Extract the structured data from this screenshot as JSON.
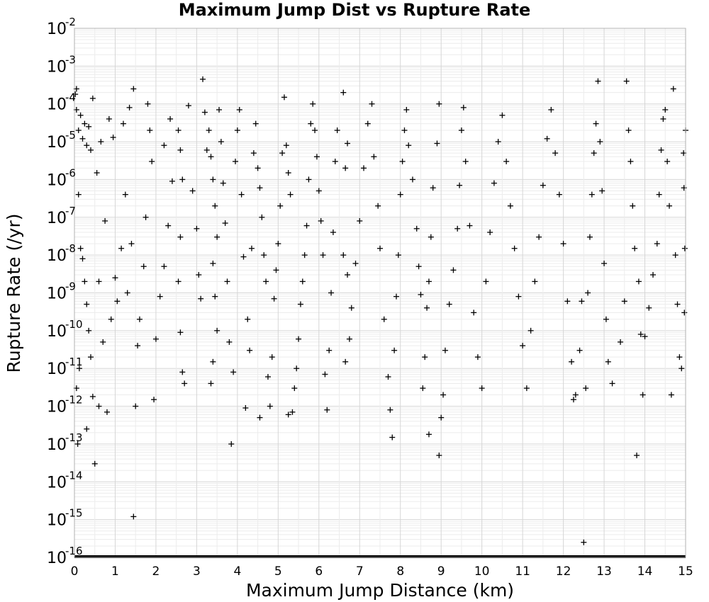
{
  "chart_data": {
    "type": "scatter",
    "title": "Maximum Jump Dist vs Rupture Rate",
    "xlabel": "Maximum Jump Distance (km)",
    "ylabel": "Rupture Rate (/yr)",
    "xlim": [
      0,
      15
    ],
    "ylim": [
      1e-16,
      0.01
    ],
    "yscale": "log",
    "x_ticks": [
      "0",
      "1",
      "2",
      "3",
      "4",
      "5",
      "6",
      "7",
      "8",
      "9",
      "10",
      "11",
      "12",
      "13",
      "14",
      "15"
    ],
    "y_ticks": [
      {
        "base": "10",
        "exp": "-2"
      },
      {
        "base": "10",
        "exp": "-3"
      },
      {
        "base": "10",
        "exp": "-4"
      },
      {
        "base": "10",
        "exp": "-5"
      },
      {
        "base": "10",
        "exp": "-6"
      },
      {
        "base": "10",
        "exp": "-7"
      },
      {
        "base": "10",
        "exp": "-8"
      },
      {
        "base": "10",
        "exp": "-9"
      },
      {
        "base": "10",
        "exp": "-10"
      },
      {
        "base": "10",
        "exp": "-11"
      },
      {
        "base": "10",
        "exp": "-12"
      },
      {
        "base": "10",
        "exp": "-13"
      },
      {
        "base": "10",
        "exp": "-14"
      },
      {
        "base": "10",
        "exp": "-15"
      },
      {
        "base": "10",
        "exp": "-16"
      }
    ],
    "grid": true,
    "marker": "+",
    "marker_color": "#000000",
    "series": [
      {
        "points": [
          [
            0.02,
            0.00018
          ],
          [
            0.05,
            7e-05
          ],
          [
            0.1,
            2e-05
          ],
          [
            0.15,
            5e-05
          ],
          [
            0.2,
            1.2e-05
          ],
          [
            0.25,
            3e-05
          ],
          [
            0.3,
            8e-06
          ],
          [
            0.35,
            2.5e-05
          ],
          [
            0.4,
            6e-06
          ],
          [
            0.45,
            0.00014
          ],
          [
            0.05,
            0.00025
          ],
          [
            0.1,
            4e-07
          ],
          [
            0.15,
            1.5e-08
          ],
          [
            0.2,
            8e-09
          ],
          [
            0.25,
            2e-09
          ],
          [
            0.3,
            5e-10
          ],
          [
            0.35,
            1e-10
          ],
          [
            0.4,
            2e-11
          ],
          [
            0.12,
            1e-11
          ],
          [
            0.05,
            3e-12
          ],
          [
            0.08,
            1e-13
          ],
          [
            0.3,
            2.5e-13
          ],
          [
            0.5,
            3e-14
          ],
          [
            0.45,
            1.8e-12
          ],
          [
            0.6,
            1e-12
          ],
          [
            0.8,
            7e-13
          ],
          [
            0.7,
            5e-11
          ],
          [
            0.9,
            2e-10
          ],
          [
            0.6,
            2e-09
          ],
          [
            0.75,
            8e-08
          ],
          [
            0.55,
            1.5e-06
          ],
          [
            0.65,
            1e-05
          ],
          [
            0.85,
            4e-05
          ],
          [
            0.95,
            1.3e-05
          ],
          [
            1.05,
            6e-10
          ],
          [
            1.15,
            1.5e-08
          ],
          [
            1.0,
            2.5e-09
          ],
          [
            1.2,
            3e-05
          ],
          [
            1.35,
            8e-05
          ],
          [
            1.45,
            0.00025
          ],
          [
            1.25,
            4e-07
          ],
          [
            1.4,
            2e-08
          ],
          [
            1.3,
            1e-09
          ],
          [
            1.45,
            1.2e-15
          ],
          [
            1.5,
            1e-12
          ],
          [
            1.55,
            4e-11
          ],
          [
            1.6,
            2e-10
          ],
          [
            1.7,
            5e-09
          ],
          [
            1.75,
            1e-07
          ],
          [
            1.8,
            0.0001
          ],
          [
            1.85,
            2e-05
          ],
          [
            1.9,
            3e-06
          ],
          [
            1.95,
            1.5e-12
          ],
          [
            2.0,
            6e-11
          ],
          [
            2.1,
            8e-10
          ],
          [
            2.2,
            5e-09
          ],
          [
            2.3,
            6e-08
          ],
          [
            2.4,
            9e-07
          ],
          [
            2.2,
            8e-06
          ],
          [
            2.35,
            4e-05
          ],
          [
            2.55,
            2e-05
          ],
          [
            2.6,
            6e-06
          ],
          [
            2.65,
            1e-06
          ],
          [
            2.6,
            3e-08
          ],
          [
            2.55,
            2e-09
          ],
          [
            2.6,
            9e-11
          ],
          [
            2.65,
            8e-12
          ],
          [
            2.7,
            4e-12
          ],
          [
            2.8,
            9e-05
          ],
          [
            2.9,
            5e-07
          ],
          [
            3.0,
            5e-08
          ],
          [
            3.05,
            3e-09
          ],
          [
            3.1,
            7e-10
          ],
          [
            3.15,
            0.00045
          ],
          [
            3.2,
            6e-05
          ],
          [
            3.25,
            6e-06
          ],
          [
            3.3,
            2e-05
          ],
          [
            3.35,
            4e-06
          ],
          [
            3.4,
            1e-06
          ],
          [
            3.45,
            2e-07
          ],
          [
            3.5,
            3e-08
          ],
          [
            3.4,
            6e-09
          ],
          [
            3.45,
            8e-10
          ],
          [
            3.5,
            1e-10
          ],
          [
            3.4,
            1.5e-11
          ],
          [
            3.35,
            4e-12
          ],
          [
            3.55,
            7e-05
          ],
          [
            3.6,
            1e-05
          ],
          [
            3.65,
            8e-07
          ],
          [
            3.7,
            7e-08
          ],
          [
            3.75,
            2e-09
          ],
          [
            3.8,
            5e-11
          ],
          [
            3.85,
            1e-13
          ],
          [
            3.9,
            8e-12
          ],
          [
            3.95,
            3e-06
          ],
          [
            4.0,
            2e-05
          ],
          [
            4.05,
            7e-05
          ],
          [
            4.1,
            4e-07
          ],
          [
            4.15,
            9e-09
          ],
          [
            4.2,
            9e-13
          ],
          [
            4.25,
            2e-10
          ],
          [
            4.3,
            3e-11
          ],
          [
            4.35,
            1.5e-08
          ],
          [
            4.4,
            5e-06
          ],
          [
            4.45,
            3e-05
          ],
          [
            4.5,
            2e-06
          ],
          [
            4.55,
            6e-07
          ],
          [
            4.6,
            1e-07
          ],
          [
            4.65,
            1e-08
          ],
          [
            4.7,
            2e-09
          ],
          [
            4.75,
            6e-12
          ],
          [
            4.55,
            5e-13
          ],
          [
            4.8,
            1e-12
          ],
          [
            4.85,
            2e-11
          ],
          [
            4.9,
            7e-10
          ],
          [
            4.95,
            4e-09
          ],
          [
            5.0,
            2e-08
          ],
          [
            5.05,
            2e-07
          ],
          [
            5.1,
            5e-06
          ],
          [
            5.15,
            0.00015
          ],
          [
            5.2,
            8e-06
          ],
          [
            5.25,
            1.5e-06
          ],
          [
            5.3,
            4e-07
          ],
          [
            5.35,
            7e-13
          ],
          [
            5.25,
            6e-13
          ],
          [
            5.4,
            3e-12
          ],
          [
            5.45,
            1e-11
          ],
          [
            5.5,
            6e-11
          ],
          [
            5.55,
            5e-10
          ],
          [
            5.6,
            2e-09
          ],
          [
            5.65,
            1e-08
          ],
          [
            5.7,
            6e-08
          ],
          [
            5.75,
            1e-06
          ],
          [
            5.8,
            3e-05
          ],
          [
            5.85,
            0.0001
          ],
          [
            5.9,
            2e-05
          ],
          [
            5.95,
            4e-06
          ],
          [
            6.0,
            5e-07
          ],
          [
            6.05,
            8e-08
          ],
          [
            6.1,
            1e-08
          ],
          [
            6.15,
            7e-12
          ],
          [
            6.2,
            8e-13
          ],
          [
            6.25,
            3e-11
          ],
          [
            6.3,
            1e-09
          ],
          [
            6.35,
            4e-08
          ],
          [
            6.4,
            3e-06
          ],
          [
            6.45,
            2e-05
          ],
          [
            6.6,
            0.0002
          ],
          [
            6.7,
            9e-06
          ],
          [
            6.65,
            2e-06
          ],
          [
            6.6,
            1e-08
          ],
          [
            6.7,
            3e-09
          ],
          [
            6.65,
            1.5e-11
          ],
          [
            6.75,
            6e-11
          ],
          [
            6.8,
            4e-10
          ],
          [
            6.9,
            6e-09
          ],
          [
            7.0,
            8e-08
          ],
          [
            7.1,
            2e-06
          ],
          [
            7.2,
            3e-05
          ],
          [
            7.3,
            0.0001
          ],
          [
            7.35,
            4e-06
          ],
          [
            7.45,
            2e-07
          ],
          [
            7.5,
            1.5e-08
          ],
          [
            7.6,
            2e-10
          ],
          [
            7.7,
            6e-12
          ],
          [
            7.75,
            8e-13
          ],
          [
            7.8,
            1.5e-13
          ],
          [
            7.85,
            3e-11
          ],
          [
            7.9,
            8e-10
          ],
          [
            7.95,
            1e-08
          ],
          [
            8.0,
            4e-07
          ],
          [
            8.05,
            3e-06
          ],
          [
            8.1,
            2e-05
          ],
          [
            8.15,
            7e-05
          ],
          [
            8.2,
            8e-06
          ],
          [
            8.3,
            1e-06
          ],
          [
            8.4,
            5e-08
          ],
          [
            8.45,
            5e-09
          ],
          [
            8.5,
            9e-10
          ],
          [
            8.55,
            3e-12
          ],
          [
            8.6,
            2e-11
          ],
          [
            8.65,
            4e-10
          ],
          [
            8.7,
            2e-09
          ],
          [
            8.75,
            3e-08
          ],
          [
            8.8,
            6e-07
          ],
          [
            8.9,
            9e-06
          ],
          [
            8.95,
            0.0001
          ],
          [
            9.0,
            5e-13
          ],
          [
            8.95,
            5e-14
          ],
          [
            9.05,
            2e-12
          ],
          [
            8.7,
            1.8e-13
          ],
          [
            9.1,
            3e-11
          ],
          [
            9.2,
            5e-10
          ],
          [
            9.3,
            4e-09
          ],
          [
            9.4,
            5e-08
          ],
          [
            9.45,
            7e-07
          ],
          [
            9.5,
            2e-05
          ],
          [
            9.55,
            8e-05
          ],
          [
            9.6,
            3e-06
          ],
          [
            9.7,
            6e-08
          ],
          [
            9.8,
            3e-10
          ],
          [
            9.9,
            2e-11
          ],
          [
            10.0,
            3e-12
          ],
          [
            10.1,
            2e-09
          ],
          [
            10.2,
            4e-08
          ],
          [
            10.3,
            8e-07
          ],
          [
            10.4,
            1e-05
          ],
          [
            10.5,
            5e-05
          ],
          [
            10.6,
            3e-06
          ],
          [
            10.7,
            2e-07
          ],
          [
            10.8,
            1.5e-08
          ],
          [
            10.9,
            8e-10
          ],
          [
            11.0,
            4e-11
          ],
          [
            11.1,
            3e-12
          ],
          [
            11.2,
            1e-10
          ],
          [
            11.3,
            2e-09
          ],
          [
            11.4,
            3e-08
          ],
          [
            11.5,
            7e-07
          ],
          [
            11.6,
            1.2e-05
          ],
          [
            11.7,
            7e-05
          ],
          [
            11.8,
            5e-06
          ],
          [
            11.9,
            4e-07
          ],
          [
            12.0,
            2e-08
          ],
          [
            12.1,
            6e-10
          ],
          [
            12.2,
            1.5e-11
          ],
          [
            12.25,
            1.5e-12
          ],
          [
            12.3,
            2e-12
          ],
          [
            12.4,
            3e-11
          ],
          [
            12.45,
            6e-10
          ],
          [
            12.5,
            2.5e-16
          ],
          [
            12.55,
            3e-12
          ],
          [
            12.6,
            1e-09
          ],
          [
            12.65,
            3e-08
          ],
          [
            12.7,
            4e-07
          ],
          [
            12.75,
            5e-06
          ],
          [
            12.8,
            3e-05
          ],
          [
            12.85,
            0.0004
          ],
          [
            12.9,
            1e-05
          ],
          [
            12.95,
            5e-07
          ],
          [
            13.0,
            6e-09
          ],
          [
            13.05,
            2e-10
          ],
          [
            13.1,
            1.5e-11
          ],
          [
            13.2,
            4e-12
          ],
          [
            13.4,
            5e-11
          ],
          [
            13.5,
            6e-10
          ],
          [
            13.55,
            0.0004
          ],
          [
            13.6,
            2e-05
          ],
          [
            13.65,
            3e-06
          ],
          [
            13.7,
            2e-07
          ],
          [
            13.75,
            1.5e-08
          ],
          [
            13.8,
            5e-14
          ],
          [
            13.85,
            2e-09
          ],
          [
            13.9,
            8e-11
          ],
          [
            13.95,
            2e-12
          ],
          [
            14.0,
            7e-11
          ],
          [
            14.1,
            4e-10
          ],
          [
            14.2,
            3e-09
          ],
          [
            14.3,
            2e-08
          ],
          [
            14.35,
            4e-07
          ],
          [
            14.4,
            6e-06
          ],
          [
            14.45,
            4e-05
          ],
          [
            14.5,
            7e-05
          ],
          [
            14.55,
            3e-06
          ],
          [
            14.6,
            2e-07
          ],
          [
            14.65,
            2e-12
          ],
          [
            14.7,
            0.00025
          ],
          [
            14.75,
            1e-08
          ],
          [
            14.8,
            5e-10
          ],
          [
            14.85,
            2e-11
          ],
          [
            14.9,
            1e-11
          ],
          [
            14.95,
            5e-06
          ],
          [
            15.0,
            2e-05
          ],
          [
            14.98,
            1.5e-08
          ],
          [
            14.97,
            3e-10
          ],
          [
            14.96,
            6e-07
          ]
        ]
      }
    ]
  }
}
